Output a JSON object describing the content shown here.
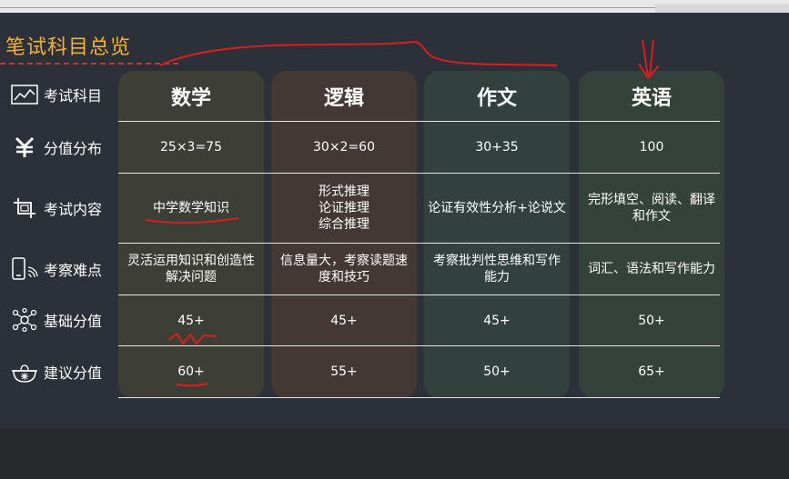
{
  "section_title": "笔试科目总览",
  "row_labels": [
    "考试科目",
    "分值分布",
    "考试内容",
    "考察难点",
    "基础分值",
    "建议分值"
  ],
  "row_icons": [
    "chart-frame-icon",
    "yen-icon",
    "crop-icon",
    "phone-signal-icon",
    "network-icon",
    "pot-icon"
  ],
  "columns": [
    "数学",
    "逻辑",
    "作文",
    "英语"
  ],
  "rows": [
    [
      "25×3=75",
      "30×2=60",
      "30+35",
      "100"
    ],
    [
      "中学数学知识",
      "形式推理\n论证推理\n综合推理",
      "论证有效性分析+论说文",
      "完形填空、阅读、翻译和作文"
    ],
    [
      "灵活运用知识和创造性解决问题",
      "信息量大，考察读题速度和技巧",
      "考察批判性思维和写作能力",
      "词汇、语法和写作能力"
    ],
    [
      "45+",
      "45+",
      "45+",
      "50+"
    ],
    [
      "60+",
      "55+",
      "50+",
      "65+"
    ]
  ],
  "colors": {
    "title": "#f2b13a",
    "annotation_ink": "#d81e1e",
    "col_math": "#3d3e36",
    "col_logic": "#433834",
    "col_writing": "#32413e",
    "col_english": "#34423b"
  }
}
